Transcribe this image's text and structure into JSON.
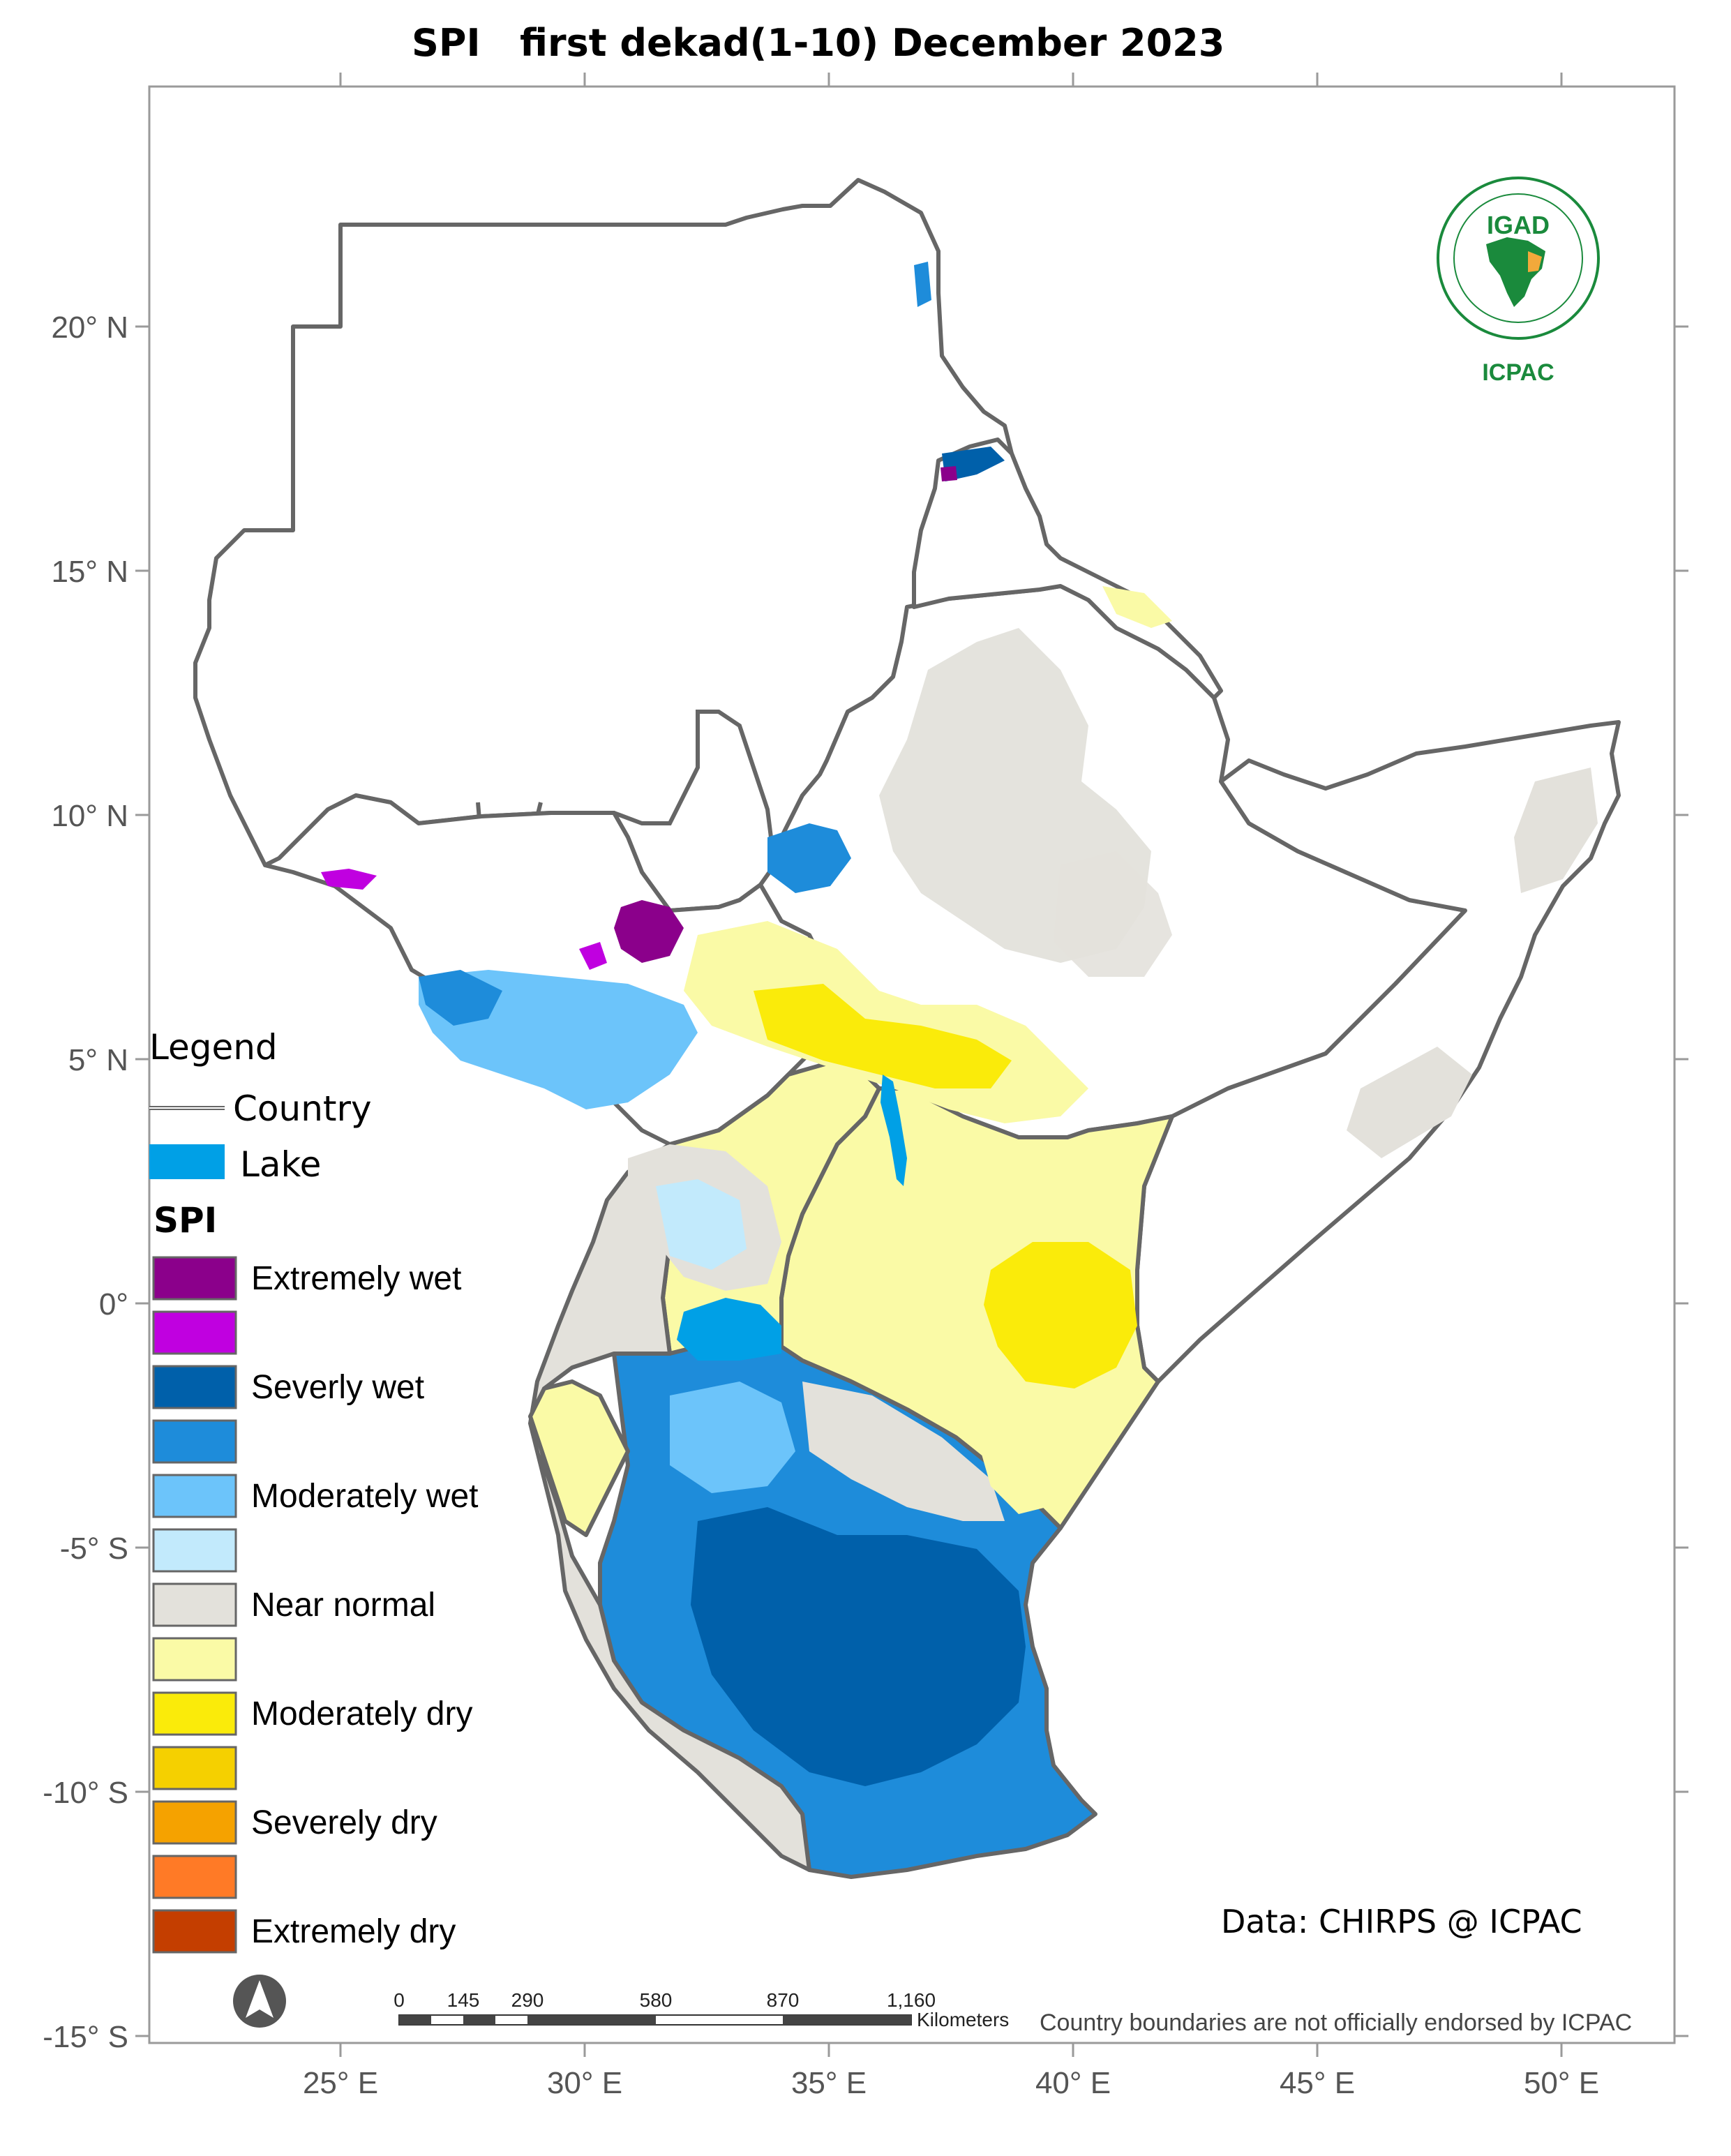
{
  "title": "SPI   first dekad(1-10) December 2023",
  "axes": {
    "lat_ticks": [
      "20° N",
      "15° N",
      "10° N",
      "5° N",
      "0°",
      "-5° S",
      "-10° S",
      "-15° S"
    ],
    "lon_ticks": [
      "25° E",
      "30° E",
      "35° E",
      "40° E",
      "45° E",
      "50° E"
    ]
  },
  "legend": {
    "heading": "Legend",
    "country_label": "Country",
    "lake_label": "Lake",
    "spi_heading": "SPI",
    "classes": [
      {
        "label": "Extremely wet",
        "color": "#8B008B"
      },
      {
        "label": "",
        "color": "#C000E0"
      },
      {
        "label": "Severly wet",
        "color": "#0060AA"
      },
      {
        "label": "",
        "color": "#1E8CDA"
      },
      {
        "label": "Moderately wet",
        "color": "#6CC4FA"
      },
      {
        "label": "",
        "color": "#C2EAFC"
      },
      {
        "label": "Near normal",
        "color": "#E3E1DB"
      },
      {
        "label": "",
        "color": "#FAFAA6"
      },
      {
        "label": "Moderately dry",
        "color": "#FAEB0A"
      },
      {
        "label": "",
        "color": "#F5D000"
      },
      {
        "label": "Severely dry",
        "color": "#F5A200"
      },
      {
        "label": "",
        "color": "#FF7A26"
      },
      {
        "label": "Extremely dry",
        "color": "#C43E00"
      }
    ],
    "lake_color": "#00A0E6",
    "country_line_color": "#666666"
  },
  "logo": {
    "top_text": "IGAD",
    "bottom_text": "ICPAC",
    "color": "#1A8A3C"
  },
  "data_source": "Data: CHIRPS @ ICPAC",
  "scale_bar": {
    "ticks": [
      "0",
      "145",
      "290",
      "580",
      "870",
      "1,160"
    ],
    "unit": "Kilometers"
  },
  "disclaimer": "Country boundaries are not officially endorsed by ICPAC",
  "north_arrow": "north-arrow-icon"
}
